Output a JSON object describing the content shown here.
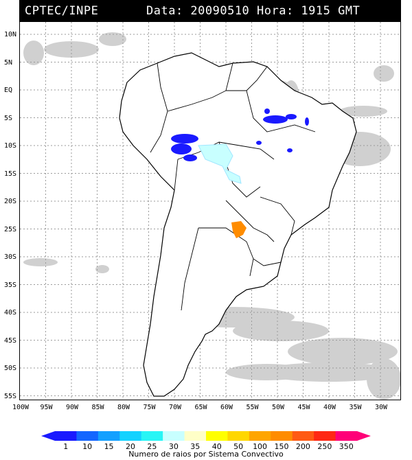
{
  "header": {
    "source": "CPTEC/INPE",
    "datetime": "Data: 20090510 Hora: 1915 GMT"
  },
  "lat_labels": [
    "10N",
    "5N",
    "EQ",
    "5S",
    "10S",
    "15S",
    "20S",
    "25S",
    "30S",
    "35S",
    "40S",
    "45S",
    "50S",
    "55S"
  ],
  "lon_labels": [
    "100W",
    "95W",
    "90W",
    "85W",
    "80W",
    "75W",
    "70W",
    "65W",
    "60W",
    "55W",
    "50W",
    "45W",
    "40W",
    "35W",
    "30W"
  ],
  "colorbar": {
    "ticks": [
      "1",
      "10",
      "15",
      "20",
      "25",
      "30",
      "35",
      "40",
      "50",
      "100",
      "150",
      "200",
      "250",
      "350"
    ],
    "colors": [
      "#1a1aff",
      "#1466ff",
      "#14a0ff",
      "#14d2ff",
      "#28f5f5",
      "#c8ffff",
      "#ffffc8",
      "#ffff00",
      "#ffd700",
      "#ffa500",
      "#ff8c00",
      "#ff5a14",
      "#ff2814",
      "#ff0078"
    ],
    "label": "Numero de raios por Sistema Convectivo"
  },
  "colors": {
    "land_outline": "#000000",
    "cloud": "#c8c8c8",
    "grid": "#9a9a9a"
  }
}
